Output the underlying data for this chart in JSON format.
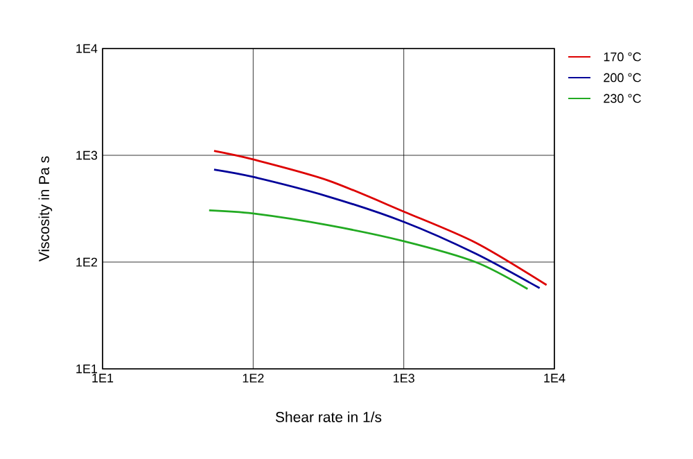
{
  "chart_data": {
    "type": "line",
    "xlabel": "Shear rate in 1/s",
    "ylabel": "Viscosity in Pa s",
    "log": "xy",
    "grid": true,
    "legend": "top right",
    "marker": "none",
    "line_style": "solid",
    "xlim": [
      10,
      10000
    ],
    "ylim": [
      10,
      10000
    ],
    "xticks": [
      {
        "value": 10,
        "label": "1E1"
      },
      {
        "value": 100,
        "label": "1E2"
      },
      {
        "value": 1000,
        "label": "1E3"
      },
      {
        "value": 10000,
        "label": "1E4"
      }
    ],
    "yticks": [
      {
        "value": 10,
        "label": "1E1"
      },
      {
        "value": 100,
        "label": "1E2"
      },
      {
        "value": 1000,
        "label": "1E3"
      },
      {
        "value": 10000,
        "label": "1E4"
      }
    ],
    "series": [
      {
        "name": "170 °C",
        "color": "#dd0000",
        "x": [
          55,
          100,
          313,
          1000,
          3000,
          8870
        ],
        "values": [
          1100,
          915,
          583,
          297,
          152,
          61
        ]
      },
      {
        "name": "200 °C",
        "color": "#000099",
        "x": [
          55,
          100,
          313,
          1000,
          3000,
          7980
        ],
        "values": [
          735,
          627,
          412,
          238,
          120,
          57
        ]
      },
      {
        "name": "230 °C",
        "color": "#22aa22",
        "x": [
          51,
          100,
          313,
          1000,
          3000,
          6640
        ],
        "values": [
          305,
          285,
          222,
          157,
          100,
          56
        ]
      }
    ]
  }
}
